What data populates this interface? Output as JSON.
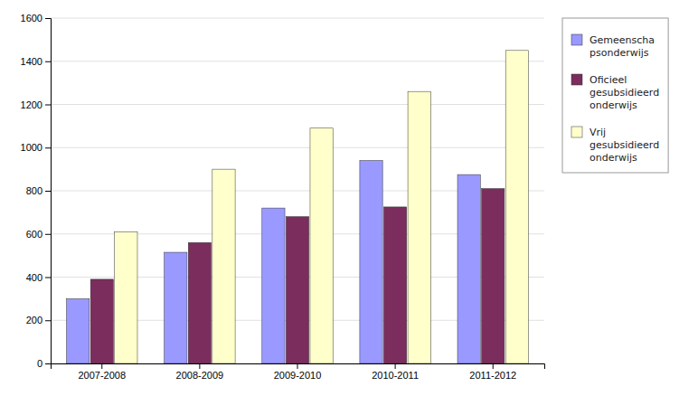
{
  "chart_data": {
    "type": "bar",
    "categories": [
      "2007-2008",
      "2008-2009",
      "2009-2010",
      "2010-2011",
      "2011-2012"
    ],
    "series": [
      {
        "name": "Gemeenscha\npsonderwijs",
        "values": [
          300,
          515,
          720,
          940,
          875
        ],
        "color": "#9999FF"
      },
      {
        "name": "Oficieel\ngesubsidieerd\nonderwijs",
        "values": [
          390,
          560,
          680,
          725,
          810
        ],
        "color": "#7B2D5E"
      },
      {
        "name": "Vrij\ngesubsidieerd\nonderwijs",
        "values": [
          610,
          900,
          1090,
          1260,
          1450
        ],
        "color": "#FFFFCC"
      }
    ],
    "ylim": [
      0,
      1600
    ],
    "yticks": [
      0,
      200,
      400,
      600,
      800,
      1000,
      1200,
      1400,
      1600
    ],
    "grid": true,
    "legend": "right"
  }
}
